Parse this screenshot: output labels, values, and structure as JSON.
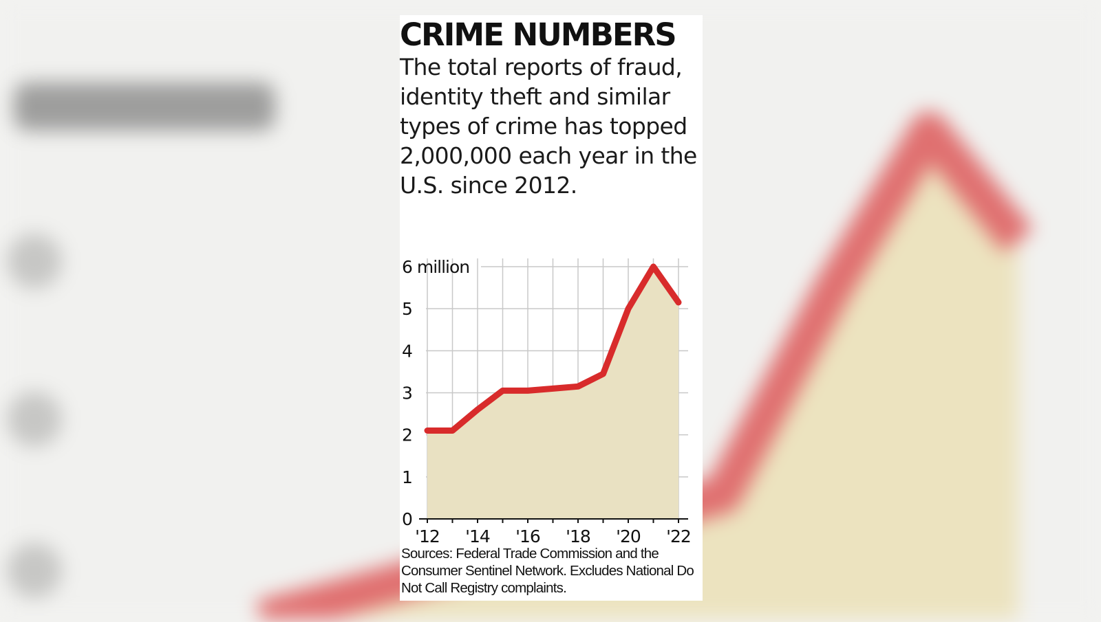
{
  "headline": "CRIME NUMBERS",
  "subhead": "The total reports of fraud, identity theft and similar types of crime has topped 2,000,000 each year in the U.S. since 2012.",
  "sources": "Sources: Federal Trade Commission and the Consumer Sentinel Network. Excludes National Do Not Call Registry complaints.",
  "colors": {
    "line": "#d82b2b",
    "area": "#e9e1c2",
    "grid": "#c8c8c8",
    "axis": "#111111"
  },
  "chart_data": {
    "type": "area",
    "title": "",
    "xlabel": "",
    "ylabel": "",
    "x": [
      2012,
      2013,
      2014,
      2015,
      2016,
      2017,
      2018,
      2019,
      2020,
      2021,
      2022
    ],
    "x_tick_values": [
      2012,
      2014,
      2016,
      2018,
      2020,
      2022
    ],
    "x_tick_labels": [
      "'12",
      "'14",
      "'16",
      "'18",
      "'20",
      "'22"
    ],
    "y_tick_values": [
      0,
      1,
      2,
      3,
      4,
      5,
      6
    ],
    "y_tick_labels": [
      "0",
      "1",
      "2",
      "3",
      "4",
      "5",
      "6 million"
    ],
    "ylim": [
      0,
      6
    ],
    "xlim": [
      2012,
      2022
    ],
    "grid": true,
    "series": [
      {
        "values": [
          2.1,
          2.1,
          2.6,
          3.05,
          3.05,
          3.1,
          3.15,
          3.45,
          5.0,
          6.0,
          5.15
        ]
      }
    ]
  }
}
